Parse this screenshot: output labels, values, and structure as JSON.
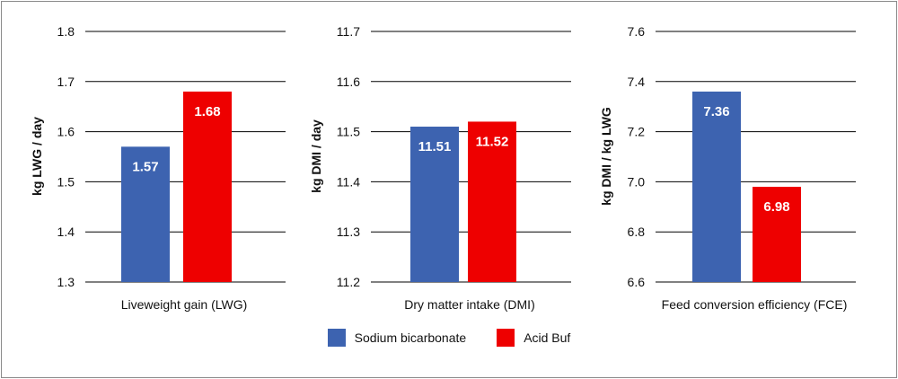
{
  "colors": {
    "sodium": "#3d63b0",
    "acidbuf": "#ee0000",
    "grid": "#000000"
  },
  "legend": {
    "items": [
      {
        "name": "Sodium bicarbonate",
        "color": "#3d63b0"
      },
      {
        "name": "Acid Buf",
        "color": "#ee0000"
      }
    ]
  },
  "chart_data": [
    {
      "type": "bar",
      "xlabel": "Liveweight gain (LWG)",
      "ylabel": "kg LWG / day",
      "ylim": [
        1.3,
        1.8
      ],
      "yticks": [
        "1.3",
        "1.4",
        "1.5",
        "1.6",
        "1.7",
        "1.8"
      ],
      "series": [
        {
          "name": "Sodium bicarbonate",
          "values": [
            1.57
          ],
          "labels": [
            "1.57"
          ]
        },
        {
          "name": "Acid Buf",
          "values": [
            1.68
          ],
          "labels": [
            "1.68"
          ]
        }
      ]
    },
    {
      "type": "bar",
      "xlabel": "Dry matter intake (DMI)",
      "ylabel": "kg DMI / day",
      "ylim": [
        11.2,
        11.7
      ],
      "yticks": [
        "11.2",
        "11.3",
        "11.4",
        "11.5",
        "11.6",
        "11.7"
      ],
      "series": [
        {
          "name": "Sodium bicarbonate",
          "values": [
            11.51
          ],
          "labels": [
            "11.51"
          ]
        },
        {
          "name": "Acid Buf",
          "values": [
            11.52
          ],
          "labels": [
            "11.52"
          ]
        }
      ]
    },
    {
      "type": "bar",
      "xlabel": "Feed conversion efficiency (FCE)",
      "ylabel": "kg DMI / kg LWG",
      "ylim": [
        6.6,
        7.6
      ],
      "yticks": [
        "6.6",
        "6.8",
        "7.0",
        "7.2",
        "7.4",
        "7.6"
      ],
      "series": [
        {
          "name": "Sodium bicarbonate",
          "values": [
            7.36
          ],
          "labels": [
            "7.36"
          ]
        },
        {
          "name": "Acid Buf",
          "values": [
            6.98
          ],
          "labels": [
            "6.98"
          ]
        }
      ]
    }
  ]
}
